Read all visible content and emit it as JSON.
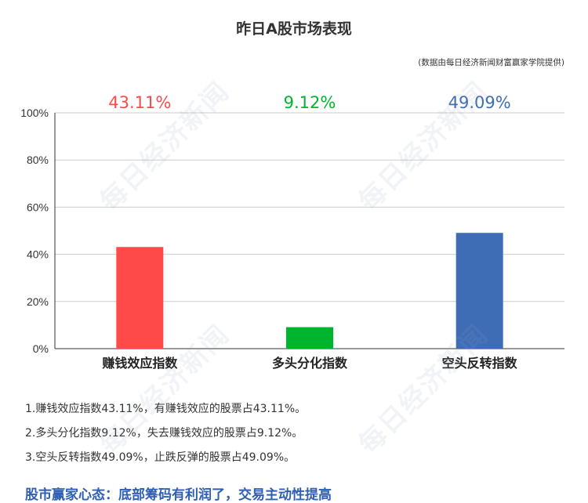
{
  "title": "昨日A股市场表现",
  "source": "(数据由每日经济新闻财富赢家学院提供)",
  "watermark": "每日经济新闻",
  "chart_data": {
    "type": "bar",
    "categories": [
      "赚钱效应指数",
      "多头分化指数",
      "空头反转指数"
    ],
    "values": [
      43.11,
      9.12,
      49.09
    ],
    "value_labels": [
      "43.11%",
      "9.12%",
      "49.09%"
    ],
    "colors": [
      "#ff4a4a",
      "#00b52e",
      "#3f6db5"
    ],
    "ylim": [
      0,
      100
    ],
    "yticks": [
      "0%",
      "20%",
      "40%",
      "60%",
      "80%",
      "100%"
    ],
    "grid": true,
    "xlabel": "",
    "ylabel": ""
  },
  "notes": [
    "1.赚钱效应指数43.11%，有赚钱效应的股票占43.11%。",
    "2.多头分化指数9.12%，失去赚钱效应的股票占9.12%。",
    "3.空头反转指数49.09%，止跌反弹的股票占49.09%。"
  ],
  "market_mood": "股市赢家心态：底部筹码有利润了，交易主动性提高"
}
